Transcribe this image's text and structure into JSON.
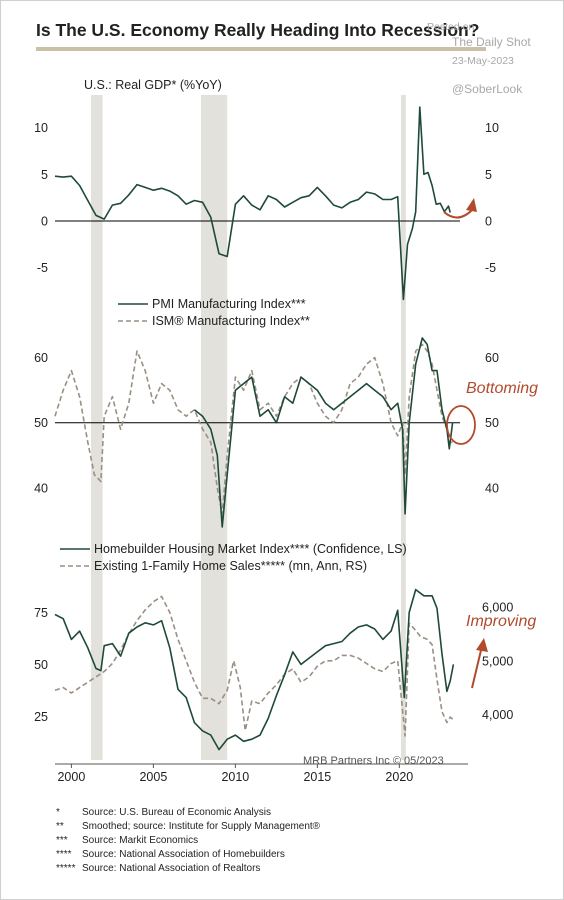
{
  "title": "Is The U.S. Economy Really Heading Into Recession?",
  "watermark": {
    "posted": "Posted on",
    "site": "The Daily Shot",
    "date": "23-May-2023",
    "handle": "@SoberLook"
  },
  "credit": "MRB Partners Inc © 05/2023",
  "footnotes": [
    {
      "mark": "*",
      "text": "Source: U.S. Bureau of Economic Analysis"
    },
    {
      "mark": "**",
      "text": "Smoothed; source: Institute for Supply Management®"
    },
    {
      "mark": "***",
      "text": "Source: Markit Economics"
    },
    {
      "mark": "****",
      "text": "Source: National Association of Homebuilders"
    },
    {
      "mark": "*****",
      "text": "Source: National Association of Realtors"
    }
  ],
  "colors": {
    "line": "#1f4a38",
    "dashed": "#9a8f82",
    "shade": "#e3e1db",
    "accent": "#b24a2c",
    "titleRule": "#cbbfa6"
  },
  "chart_data": [
    {
      "type": "line",
      "title": "U.S.: Real GDP* (%YoY)",
      "xlim": [
        1999,
        2023.7
      ],
      "ylim": [
        -9,
        13.5
      ],
      "yticks": [
        10,
        5,
        0,
        -5
      ],
      "ytick_labels": [
        "10",
        "5",
        "0",
        "-5"
      ],
      "recessions": [
        [
          2001.2,
          2001.9
        ],
        [
          2007.9,
          2009.5
        ],
        [
          2020.1,
          2020.4
        ]
      ],
      "series": [
        {
          "name": "",
          "style": "solid",
          "x": [
            1999,
            1999.5,
            2000,
            2000.5,
            2001,
            2001.5,
            2002,
            2002.5,
            2003,
            2003.5,
            2004,
            2004.5,
            2005,
            2005.5,
            2006,
            2006.5,
            2007,
            2007.5,
            2008,
            2008.5,
            2009,
            2009.5,
            2010,
            2010.5,
            2011,
            2011.5,
            2012,
            2012.5,
            2013,
            2013.5,
            2014,
            2014.5,
            2015,
            2015.5,
            2016,
            2016.5,
            2017,
            2017.5,
            2018,
            2018.5,
            2019,
            2019.5,
            2019.9,
            2020.25,
            2020.5,
            2020.8,
            2021,
            2021.25,
            2021.5,
            2021.75,
            2022,
            2022.25,
            2022.5,
            2022.75,
            2023,
            2023.1
          ],
          "values": [
            4.8,
            4.7,
            4.8,
            3.8,
            2.2,
            0.6,
            0.2,
            1.7,
            1.9,
            2.8,
            3.9,
            3.6,
            3.3,
            3.5,
            3.2,
            2.7,
            1.8,
            2.2,
            2.0,
            0.4,
            -3.5,
            -3.8,
            1.8,
            2.7,
            1.7,
            1.2,
            2.7,
            2.3,
            1.5,
            2.0,
            2.5,
            2.7,
            3.6,
            2.7,
            1.7,
            1.4,
            2.0,
            2.3,
            3.1,
            2.9,
            2.3,
            2.3,
            2.6,
            -8.4,
            -2.5,
            -0.8,
            1.0,
            12.2,
            5.0,
            5.2,
            3.8,
            1.8,
            1.9,
            1.0,
            1.6,
            0.9
          ]
        }
      ],
      "annotations": [
        {
          "text": "",
          "kind": "curved-arrow-up"
        }
      ]
    },
    {
      "type": "line",
      "title": "",
      "xlim": [
        1999,
        2023.7
      ],
      "ylim": [
        32,
        65
      ],
      "yticks": [
        60,
        50,
        40
      ],
      "ytick_labels": [
        "60",
        "50",
        "40"
      ],
      "recessions": [
        [
          2001.2,
          2001.9
        ],
        [
          2007.9,
          2009.5
        ],
        [
          2020.1,
          2020.4
        ]
      ],
      "series": [
        {
          "name": "PMI Manufacturing Index***",
          "style": "solid",
          "x": [
            2007.5,
            2008,
            2008.5,
            2008.9,
            2009.2,
            2009.5,
            2010,
            2010.5,
            2011,
            2011.5,
            2012,
            2012.5,
            2013,
            2013.5,
            2014,
            2014.5,
            2015,
            2015.5,
            2016,
            2016.5,
            2017,
            2017.5,
            2018,
            2018.5,
            2019,
            2019.5,
            2019.9,
            2020.2,
            2020.35,
            2020.6,
            2021,
            2021.4,
            2021.7,
            2022,
            2022.3,
            2022.6,
            2022.9,
            2023.05,
            2023.25
          ],
          "values": [
            52,
            51,
            49,
            45,
            34,
            42,
            55,
            56,
            57,
            51,
            52,
            50,
            54,
            53,
            57,
            56,
            55,
            53,
            52,
            53,
            54,
            55,
            56,
            55,
            54,
            52,
            53,
            49,
            36,
            50,
            59,
            63,
            62,
            58,
            58,
            52,
            49,
            46,
            50
          ]
        },
        {
          "name": "ISM® Manufacturing Index**",
          "style": "dashed",
          "x": [
            1999,
            1999.5,
            2000,
            2000.5,
            2001,
            2001.4,
            2001.8,
            2002,
            2002.5,
            2003,
            2003.5,
            2004,
            2004.5,
            2005,
            2005.5,
            2006,
            2006.5,
            2007,
            2007.5,
            2008,
            2008.5,
            2008.9,
            2009.2,
            2009.5,
            2010,
            2010.5,
            2011,
            2011.5,
            2012,
            2012.5,
            2013,
            2013.5,
            2014,
            2014.5,
            2015,
            2015.5,
            2016,
            2016.5,
            2017,
            2017.5,
            2018,
            2018.5,
            2019,
            2019.5,
            2019.9,
            2020.2,
            2020.35,
            2020.6,
            2021,
            2021.4,
            2021.7,
            2022,
            2022.3,
            2022.6,
            2022.9,
            2023.05,
            2023.25
          ],
          "values": [
            51,
            55,
            58,
            54,
            47,
            42,
            41,
            51,
            54,
            49,
            53,
            61,
            58,
            53,
            56,
            55,
            52,
            51,
            52,
            49,
            47,
            40,
            36,
            45,
            57,
            55,
            58,
            52,
            53,
            51,
            54,
            56,
            57,
            56,
            53,
            51,
            50,
            52,
            56,
            57,
            59,
            60,
            56,
            50,
            48,
            50,
            42,
            54,
            61,
            62,
            61,
            59,
            55,
            51,
            49,
            47,
            47
          ]
        }
      ],
      "annotations": [
        {
          "text": "Bottoming",
          "kind": "label-with-circle"
        }
      ]
    },
    {
      "type": "line",
      "title": "",
      "xlim": [
        1999,
        2023.7
      ],
      "ylim_left": [
        4,
        93
      ],
      "yticks_left": [
        75,
        50,
        25
      ],
      "ytick_labels_left": [
        "75",
        "50",
        "25"
      ],
      "ylim_right": [
        3150,
        6600
      ],
      "yticks_right": [
        6000,
        5000,
        4000
      ],
      "ytick_labels_right": [
        "6,000",
        "5,000",
        "4,000"
      ],
      "xticks": [
        2000,
        2005,
        2010,
        2015,
        2020
      ],
      "xtick_labels": [
        "2000",
        "2005",
        "2010",
        "2015",
        "2020"
      ],
      "recessions": [
        [
          2001.2,
          2001.9
        ],
        [
          2007.9,
          2009.5
        ],
        [
          2020.1,
          2020.4
        ]
      ],
      "series": [
        {
          "name": "Homebuilder Housing Market Index**** (Confidence, LS)",
          "style": "solid",
          "axis": "left",
          "x": [
            1999,
            1999.5,
            2000,
            2000.5,
            2001,
            2001.5,
            2001.8,
            2002,
            2002.5,
            2003,
            2003.5,
            2004,
            2004.5,
            2005,
            2005.5,
            2006,
            2006.5,
            2007,
            2007.5,
            2008,
            2008.5,
            2009,
            2009.5,
            2010,
            2010.5,
            2011,
            2011.5,
            2012,
            2012.5,
            2013,
            2013.5,
            2014,
            2014.5,
            2015,
            2015.5,
            2016,
            2016.5,
            2017,
            2017.5,
            2018,
            2018.5,
            2019,
            2019.5,
            2019.9,
            2020.3,
            2020.6,
            2021,
            2021.5,
            2022,
            2022.3,
            2022.6,
            2022.9,
            2023.1,
            2023.3
          ],
          "values": [
            74,
            72,
            62,
            66,
            58,
            48,
            47,
            59,
            60,
            54,
            65,
            68,
            70,
            69,
            71,
            58,
            38,
            34,
            22,
            18,
            16,
            9,
            14,
            16,
            13,
            14,
            16,
            24,
            35,
            45,
            56,
            50,
            53,
            56,
            59,
            60,
            61,
            65,
            68,
            69,
            67,
            62,
            66,
            76,
            34,
            75,
            86,
            83,
            83,
            77,
            55,
            37,
            42,
            50
          ]
        },
        {
          "name": "Existing 1-Family Home Sales***** (mn, Ann, RS)",
          "style": "dashed",
          "axis": "right",
          "x": [
            1999,
            1999.5,
            2000,
            2000.5,
            2001,
            2001.5,
            2002,
            2002.5,
            2003,
            2003.5,
            2004,
            2004.5,
            2005,
            2005.5,
            2006,
            2006.5,
            2007,
            2007.5,
            2008,
            2008.5,
            2009,
            2009.5,
            2009.9,
            2010.3,
            2010.6,
            2011,
            2011.5,
            2012,
            2012.5,
            2013,
            2013.5,
            2014,
            2014.5,
            2015,
            2015.5,
            2016,
            2016.5,
            2017,
            2017.5,
            2018,
            2018.5,
            2019,
            2019.5,
            2019.9,
            2020.35,
            2020.6,
            2020.9,
            2021.3,
            2021.7,
            2022,
            2022.3,
            2022.6,
            2022.9,
            2023.1,
            2023.3
          ],
          "values": [
            4450,
            4500,
            4400,
            4500,
            4600,
            4700,
            4800,
            4950,
            5200,
            5500,
            5750,
            5950,
            6100,
            6200,
            5900,
            5400,
            5000,
            4600,
            4300,
            4300,
            4200,
            4450,
            5000,
            4500,
            3700,
            4250,
            4200,
            4400,
            4550,
            4750,
            4850,
            4600,
            4700,
            4900,
            5000,
            5000,
            5100,
            5100,
            5050,
            4950,
            4850,
            4800,
            4950,
            5000,
            3600,
            5700,
            5600,
            5450,
            5400,
            5300,
            4650,
            4050,
            3850,
            3950,
            3900
          ]
        }
      ],
      "annotations": [
        {
          "text": "Improving",
          "kind": "label-with-arrow"
        }
      ]
    }
  ]
}
